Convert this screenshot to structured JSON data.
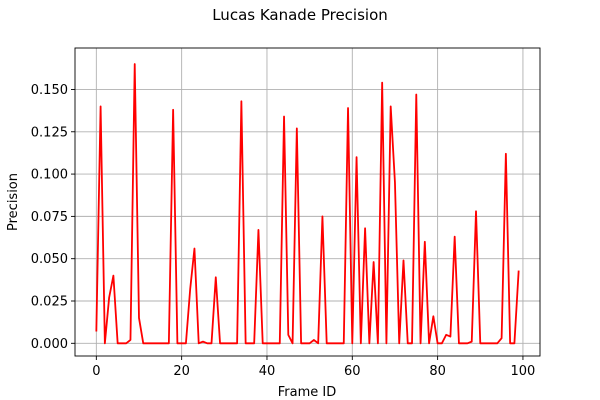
{
  "chart_data": {
    "type": "line",
    "title": "Lucas Kanade Precision",
    "xlabel": "Frame ID",
    "ylabel": "Precision",
    "xlim": [
      -5,
      104
    ],
    "ylim": [
      -0.0075,
      0.1745
    ],
    "xticks": [
      0,
      20,
      40,
      60,
      80,
      100
    ],
    "xtick_labels": [
      "0",
      "20",
      "40",
      "60",
      "80",
      "100"
    ],
    "yticks": [
      0.0,
      0.025,
      0.05,
      0.075,
      0.1,
      0.125,
      0.15
    ],
    "ytick_labels": [
      "0.000",
      "0.025",
      "0.050",
      "0.075",
      "0.100",
      "0.125",
      "0.150"
    ],
    "grid": true,
    "series": [
      {
        "color": "#ff0000",
        "x": [
          0,
          1,
          2,
          3,
          4,
          5,
          6,
          7,
          8,
          9,
          10,
          11,
          12,
          13,
          14,
          15,
          16,
          17,
          18,
          19,
          20,
          21,
          22,
          23,
          24,
          25,
          26,
          27,
          28,
          29,
          30,
          31,
          32,
          33,
          34,
          35,
          36,
          37,
          38,
          39,
          40,
          41,
          42,
          43,
          44,
          45,
          46,
          47,
          48,
          49,
          50,
          51,
          52,
          53,
          54,
          55,
          56,
          57,
          58,
          59,
          60,
          61,
          62,
          63,
          64,
          65,
          66,
          67,
          68,
          69,
          70,
          71,
          72,
          73,
          74,
          75,
          76,
          77,
          78,
          79,
          80,
          81,
          82,
          83,
          84,
          85,
          86,
          87,
          88,
          89,
          90,
          91,
          92,
          93,
          94,
          95,
          96,
          97,
          98,
          99
        ],
        "values": [
          0.007,
          0.14,
          0.0,
          0.027,
          0.04,
          0.0,
          0.0,
          0.0,
          0.002,
          0.165,
          0.015,
          0.0,
          0.0,
          0.0,
          0.0,
          0.0,
          0.0,
          0.0,
          0.138,
          0.0,
          0.0,
          0.0,
          0.032,
          0.056,
          0.0,
          0.001,
          0.0,
          0.0,
          0.039,
          0.0,
          0.0,
          0.0,
          0.0,
          0.0,
          0.143,
          0.0,
          0.0,
          0.0,
          0.067,
          0.0,
          0.0,
          0.0,
          0.0,
          0.0,
          0.134,
          0.005,
          0.0,
          0.127,
          0.0,
          0.0,
          0.0,
          0.002,
          0.0,
          0.075,
          0.0,
          0.0,
          0.0,
          0.0,
          0.0,
          0.139,
          0.0,
          0.11,
          0.0,
          0.068,
          0.0,
          0.048,
          0.0,
          0.154,
          0.0,
          0.14,
          0.095,
          0.0,
          0.049,
          0.0,
          0.0,
          0.147,
          0.0,
          0.06,
          0.0,
          0.016,
          0.0,
          0.0,
          0.005,
          0.004,
          0.063,
          0.0,
          0.0,
          0.0,
          0.001,
          0.078,
          0.0,
          0.0,
          0.0,
          0.0,
          0.0,
          0.003,
          0.112,
          0.0,
          0.0,
          0.043
        ]
      }
    ]
  }
}
